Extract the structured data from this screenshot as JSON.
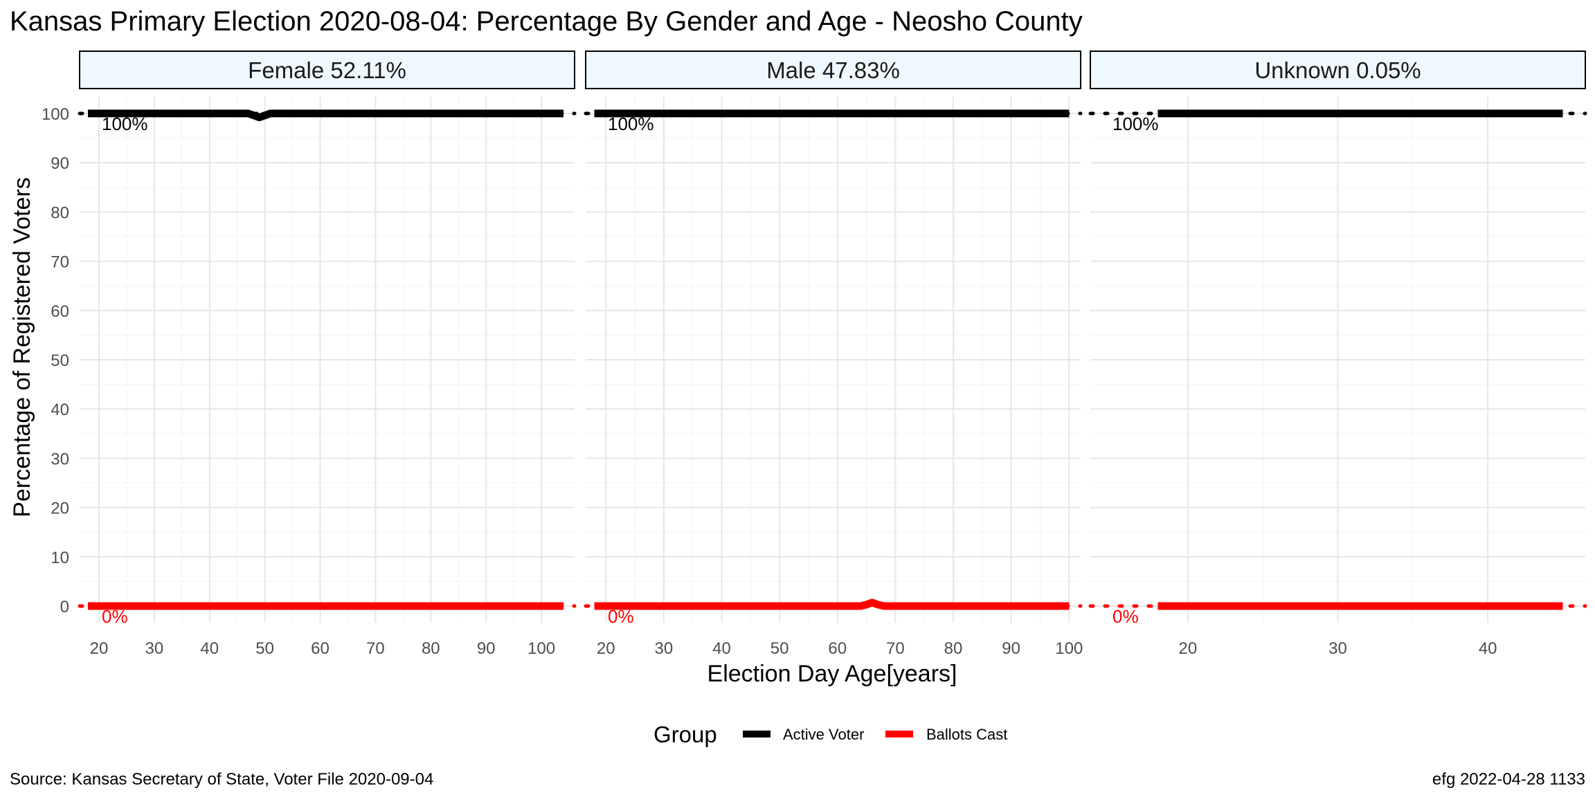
{
  "chart_data": {
    "type": "line",
    "title": "Kansas Primary Election 2020-08-04:  Percentage By Gender and Age - Neosho County",
    "xlabel": "Election Day Age[years]",
    "ylabel": "Percentage of Registered Voters",
    "ylim": [
      0,
      100
    ],
    "yticks": [
      0,
      10,
      20,
      30,
      40,
      50,
      60,
      70,
      80,
      90,
      100
    ],
    "grid": true,
    "legend": {
      "title": "Group",
      "position": "bottom",
      "entries": [
        {
          "name": "Active Voter",
          "color": "#000000"
        },
        {
          "name": "Ballots Cast",
          "color": "#ff0000"
        }
      ]
    },
    "reference_lines": [
      {
        "value": 100,
        "label": "100%",
        "color": "#000000",
        "style": "dotted"
      },
      {
        "value": 0,
        "label": "0%",
        "color": "#ff0000",
        "style": "dotted"
      }
    ],
    "panels": [
      {
        "label": "Female 52.11%",
        "xlim": [
          16.5,
          106
        ],
        "xticks": [
          20,
          30,
          40,
          50,
          60,
          70,
          80,
          90,
          100
        ],
        "series": [
          {
            "name": "Active Voter",
            "x": [
              18,
              47,
              48,
              49,
              50,
              51,
              104
            ],
            "y": [
              100,
              100,
              99.6,
              99.2,
              99.6,
              100,
              100
            ]
          },
          {
            "name": "Ballots Cast",
            "x": [
              18,
              104
            ],
            "y": [
              0,
              0
            ]
          }
        ]
      },
      {
        "label": "Male 47.83%",
        "xlim": [
          16.5,
          102
        ],
        "xticks": [
          20,
          30,
          40,
          50,
          60,
          70,
          80,
          90,
          100
        ],
        "series": [
          {
            "name": "Active Voter",
            "x": [
              18,
              100
            ],
            "y": [
              100,
              100
            ]
          },
          {
            "name": "Ballots Cast",
            "x": [
              18,
              64,
              65,
              66,
              67,
              68,
              100
            ],
            "y": [
              0,
              0,
              0.3,
              0.7,
              0.3,
              0,
              0
            ]
          }
        ]
      },
      {
        "label": "Unknown 0.05%",
        "xlim": [
          13.5,
          46.5
        ],
        "xticks": [
          20,
          30,
          40
        ],
        "series": [
          {
            "name": "Active Voter",
            "x": [
              18,
              45
            ],
            "y": [
              100,
              100
            ]
          },
          {
            "name": "Ballots Cast",
            "x": [
              18,
              45
            ],
            "y": [
              0,
              0
            ]
          }
        ]
      }
    ]
  },
  "footer": {
    "source": "Source:  Kansas Secretary of State, Voter File  2020-09-04",
    "credit": "efg 2022-04-28 1133"
  }
}
